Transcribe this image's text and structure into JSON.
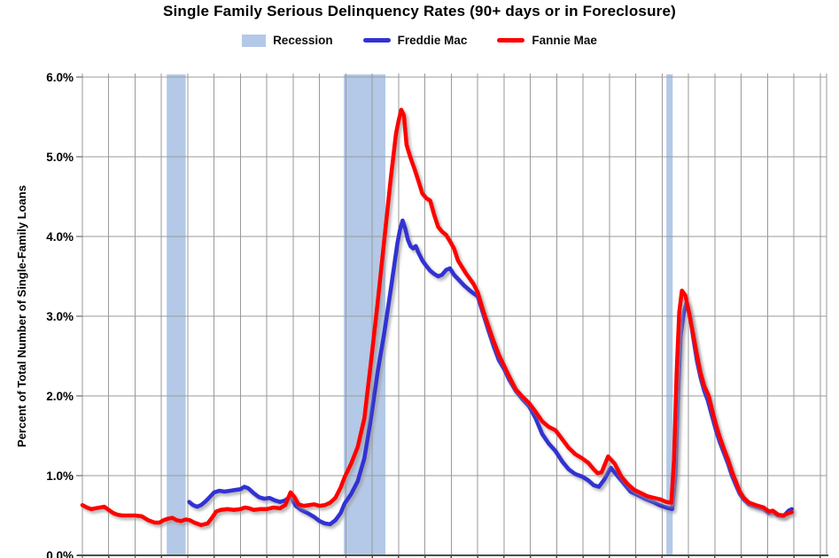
{
  "title": "Single Family Serious Delinquency Rates (90+ days or in Foreclosure)",
  "legend": [
    {
      "label": "Recession",
      "type": "band",
      "color": "#b3c9e7"
    },
    {
      "label": "Freddie Mac",
      "type": "line",
      "color": "#3232d2"
    },
    {
      "label": "Fannie Mae",
      "type": "line",
      "color": "#fe0000"
    }
  ],
  "y_axis": {
    "title": "Percent of Total Number of Single-Family Loans",
    "tick_labels": [
      "0.0%",
      "1.0%",
      "2.0%",
      "3.0%",
      "4.0%",
      "5.0%",
      "6.0%"
    ],
    "min": 0,
    "max": 6
  },
  "chart_data": {
    "type": "line",
    "title": "Single Family Serious Delinquency Rates (90+ days or in Foreclosure)",
    "ylabel": "Percent of Total Number of Single-Family Loans",
    "ylim": [
      0,
      6
    ],
    "y_unit": "percent",
    "grid": true,
    "legend_position": "top",
    "x_axis": {
      "start": 1998,
      "end": 2026.24,
      "gridline_step_years": 1,
      "tick_labels_visible": false
    },
    "colors": {
      "grid": "#9a9a9a",
      "axis": "#4d4d4d",
      "recession_band": "#b3c9e7",
      "background": "#ffffff"
    },
    "recession_bands": [
      [
        2001.2,
        2001.92
      ],
      [
        2007.92,
        2009.5
      ],
      [
        2020.16,
        2020.4
      ]
    ],
    "series": [
      {
        "name": "Freddie Mac",
        "color": "#3232d2",
        "points": [
          [
            2002.05,
            0.67
          ],
          [
            2002.2,
            0.63
          ],
          [
            2002.35,
            0.61
          ],
          [
            2002.5,
            0.63
          ],
          [
            2002.65,
            0.67
          ],
          [
            2002.8,
            0.72
          ],
          [
            2003.0,
            0.79
          ],
          [
            2003.2,
            0.81
          ],
          [
            2003.4,
            0.8
          ],
          [
            2003.6,
            0.81
          ],
          [
            2003.8,
            0.82
          ],
          [
            2004.0,
            0.83
          ],
          [
            2004.15,
            0.86
          ],
          [
            2004.3,
            0.84
          ],
          [
            2004.5,
            0.78
          ],
          [
            2004.7,
            0.73
          ],
          [
            2004.9,
            0.71
          ],
          [
            2005.1,
            0.72
          ],
          [
            2005.3,
            0.69
          ],
          [
            2005.5,
            0.67
          ],
          [
            2005.7,
            0.69
          ],
          [
            2005.9,
            0.74
          ],
          [
            2006.1,
            0.62
          ],
          [
            2006.3,
            0.57
          ],
          [
            2006.55,
            0.53
          ],
          [
            2006.8,
            0.48
          ],
          [
            2007.0,
            0.43
          ],
          [
            2007.2,
            0.4
          ],
          [
            2007.4,
            0.39
          ],
          [
            2007.6,
            0.44
          ],
          [
            2007.8,
            0.53
          ],
          [
            2007.95,
            0.65
          ],
          [
            2008.2,
            0.77
          ],
          [
            2008.45,
            0.93
          ],
          [
            2008.7,
            1.22
          ],
          [
            2008.95,
            1.72
          ],
          [
            2009.2,
            2.29
          ],
          [
            2009.45,
            2.78
          ],
          [
            2009.7,
            3.33
          ],
          [
            2009.95,
            3.91
          ],
          [
            2010.05,
            4.08
          ],
          [
            2010.15,
            4.2
          ],
          [
            2010.25,
            4.1
          ],
          [
            2010.35,
            3.96
          ],
          [
            2010.45,
            3.88
          ],
          [
            2010.55,
            3.85
          ],
          [
            2010.65,
            3.88
          ],
          [
            2010.75,
            3.8
          ],
          [
            2010.9,
            3.7
          ],
          [
            2011.05,
            3.63
          ],
          [
            2011.2,
            3.57
          ],
          [
            2011.35,
            3.53
          ],
          [
            2011.5,
            3.5
          ],
          [
            2011.65,
            3.52
          ],
          [
            2011.8,
            3.58
          ],
          [
            2011.95,
            3.6
          ],
          [
            2012.1,
            3.52
          ],
          [
            2012.3,
            3.45
          ],
          [
            2012.5,
            3.38
          ],
          [
            2012.75,
            3.31
          ],
          [
            2013.0,
            3.25
          ],
          [
            2013.2,
            3.04
          ],
          [
            2013.4,
            2.83
          ],
          [
            2013.6,
            2.63
          ],
          [
            2013.8,
            2.45
          ],
          [
            2014.0,
            2.34
          ],
          [
            2014.2,
            2.2
          ],
          [
            2014.45,
            2.06
          ],
          [
            2014.7,
            1.96
          ],
          [
            2014.95,
            1.87
          ],
          [
            2015.2,
            1.72
          ],
          [
            2015.45,
            1.52
          ],
          [
            2015.7,
            1.4
          ],
          [
            2015.95,
            1.31
          ],
          [
            2016.2,
            1.18
          ],
          [
            2016.45,
            1.08
          ],
          [
            2016.7,
            1.02
          ],
          [
            2016.95,
            0.99
          ],
          [
            2017.2,
            0.94
          ],
          [
            2017.4,
            0.88
          ],
          [
            2017.6,
            0.86
          ],
          [
            2017.8,
            0.95
          ],
          [
            2018.05,
            1.1
          ],
          [
            2018.3,
            1.0
          ],
          [
            2018.55,
            0.9
          ],
          [
            2018.8,
            0.8
          ],
          [
            2019.05,
            0.76
          ],
          [
            2019.35,
            0.71
          ],
          [
            2019.65,
            0.67
          ],
          [
            2019.9,
            0.63
          ],
          [
            2020.15,
            0.6
          ],
          [
            2020.38,
            0.58
          ],
          [
            2020.5,
            1.0
          ],
          [
            2020.6,
            2.0
          ],
          [
            2020.7,
            2.75
          ],
          [
            2020.82,
            3.05
          ],
          [
            2020.92,
            3.17
          ],
          [
            2021.05,
            3.02
          ],
          [
            2021.18,
            2.73
          ],
          [
            2021.32,
            2.44
          ],
          [
            2021.46,
            2.23
          ],
          [
            2021.6,
            2.06
          ],
          [
            2021.73,
            1.95
          ],
          [
            2021.9,
            1.74
          ],
          [
            2022.05,
            1.56
          ],
          [
            2022.2,
            1.41
          ],
          [
            2022.35,
            1.28
          ],
          [
            2022.5,
            1.15
          ],
          [
            2022.65,
            1.0
          ],
          [
            2022.8,
            0.88
          ],
          [
            2022.95,
            0.77
          ],
          [
            2023.1,
            0.7
          ],
          [
            2023.3,
            0.64
          ],
          [
            2023.55,
            0.61
          ],
          [
            2023.85,
            0.58
          ],
          [
            2024.05,
            0.53
          ],
          [
            2024.2,
            0.54
          ],
          [
            2024.4,
            0.5
          ],
          [
            2024.6,
            0.49
          ],
          [
            2024.8,
            0.56
          ],
          [
            2024.92,
            0.58
          ]
        ]
      },
      {
        "name": "Fannie Mae",
        "color": "#fe0000",
        "points": [
          [
            1998.0,
            0.63
          ],
          [
            1998.17,
            0.6
          ],
          [
            1998.33,
            0.58
          ],
          [
            1998.5,
            0.59
          ],
          [
            1998.67,
            0.6
          ],
          [
            1998.83,
            0.61
          ],
          [
            1999.0,
            0.57
          ],
          [
            1999.17,
            0.53
          ],
          [
            1999.33,
            0.51
          ],
          [
            1999.5,
            0.5
          ],
          [
            1999.75,
            0.5
          ],
          [
            2000.0,
            0.5
          ],
          [
            2000.25,
            0.49
          ],
          [
            2000.5,
            0.44
          ],
          [
            2000.75,
            0.41
          ],
          [
            2000.92,
            0.41
          ],
          [
            2001.08,
            0.44
          ],
          [
            2001.25,
            0.46
          ],
          [
            2001.42,
            0.47
          ],
          [
            2001.58,
            0.44
          ],
          [
            2001.75,
            0.43
          ],
          [
            2001.92,
            0.45
          ],
          [
            2002.08,
            0.44
          ],
          [
            2002.25,
            0.41
          ],
          [
            2002.5,
            0.38
          ],
          [
            2002.75,
            0.4
          ],
          [
            2002.92,
            0.47
          ],
          [
            2003.08,
            0.55
          ],
          [
            2003.25,
            0.57
          ],
          [
            2003.5,
            0.58
          ],
          [
            2003.75,
            0.57
          ],
          [
            2004.0,
            0.58
          ],
          [
            2004.17,
            0.6
          ],
          [
            2004.33,
            0.59
          ],
          [
            2004.5,
            0.57
          ],
          [
            2004.75,
            0.58
          ],
          [
            2005.0,
            0.58
          ],
          [
            2005.25,
            0.6
          ],
          [
            2005.5,
            0.59
          ],
          [
            2005.7,
            0.63
          ],
          [
            2005.9,
            0.79
          ],
          [
            2006.05,
            0.73
          ],
          [
            2006.2,
            0.64
          ],
          [
            2006.4,
            0.62
          ],
          [
            2006.6,
            0.63
          ],
          [
            2006.8,
            0.64
          ],
          [
            2007.0,
            0.62
          ],
          [
            2007.2,
            0.63
          ],
          [
            2007.4,
            0.66
          ],
          [
            2007.6,
            0.72
          ],
          [
            2007.8,
            0.85
          ],
          [
            2007.95,
            0.98
          ],
          [
            2008.2,
            1.15
          ],
          [
            2008.45,
            1.36
          ],
          [
            2008.7,
            1.72
          ],
          [
            2008.95,
            2.42
          ],
          [
            2009.2,
            3.15
          ],
          [
            2009.45,
            3.94
          ],
          [
            2009.7,
            4.72
          ],
          [
            2009.9,
            5.29
          ],
          [
            2010.0,
            5.45
          ],
          [
            2010.1,
            5.59
          ],
          [
            2010.2,
            5.52
          ],
          [
            2010.3,
            5.15
          ],
          [
            2010.45,
            4.99
          ],
          [
            2010.6,
            4.85
          ],
          [
            2010.75,
            4.7
          ],
          [
            2010.9,
            4.54
          ],
          [
            2011.05,
            4.48
          ],
          [
            2011.2,
            4.45
          ],
          [
            2011.35,
            4.27
          ],
          [
            2011.5,
            4.12
          ],
          [
            2011.65,
            4.06
          ],
          [
            2011.8,
            4.02
          ],
          [
            2011.95,
            3.94
          ],
          [
            2012.1,
            3.85
          ],
          [
            2012.25,
            3.7
          ],
          [
            2012.4,
            3.62
          ],
          [
            2012.55,
            3.54
          ],
          [
            2012.7,
            3.47
          ],
          [
            2012.85,
            3.4
          ],
          [
            2013.0,
            3.3
          ],
          [
            2013.2,
            3.08
          ],
          [
            2013.4,
            2.88
          ],
          [
            2013.6,
            2.69
          ],
          [
            2013.8,
            2.52
          ],
          [
            2014.0,
            2.38
          ],
          [
            2014.2,
            2.24
          ],
          [
            2014.45,
            2.08
          ],
          [
            2014.7,
            1.99
          ],
          [
            2014.95,
            1.91
          ],
          [
            2015.2,
            1.8
          ],
          [
            2015.45,
            1.68
          ],
          [
            2015.7,
            1.61
          ],
          [
            2015.95,
            1.57
          ],
          [
            2016.2,
            1.46
          ],
          [
            2016.45,
            1.35
          ],
          [
            2016.7,
            1.27
          ],
          [
            2016.95,
            1.22
          ],
          [
            2017.2,
            1.16
          ],
          [
            2017.4,
            1.08
          ],
          [
            2017.55,
            1.03
          ],
          [
            2017.7,
            1.04
          ],
          [
            2017.95,
            1.24
          ],
          [
            2018.2,
            1.15
          ],
          [
            2018.45,
            0.99
          ],
          [
            2018.7,
            0.89
          ],
          [
            2018.95,
            0.82
          ],
          [
            2019.2,
            0.78
          ],
          [
            2019.45,
            0.74
          ],
          [
            2019.7,
            0.72
          ],
          [
            2019.95,
            0.7
          ],
          [
            2020.15,
            0.67
          ],
          [
            2020.35,
            0.66
          ],
          [
            2020.45,
            1.2
          ],
          [
            2020.55,
            2.3
          ],
          [
            2020.65,
            3.05
          ],
          [
            2020.75,
            3.32
          ],
          [
            2020.88,
            3.26
          ],
          [
            2021.0,
            3.08
          ],
          [
            2021.15,
            2.82
          ],
          [
            2021.3,
            2.55
          ],
          [
            2021.45,
            2.3
          ],
          [
            2021.6,
            2.12
          ],
          [
            2021.77,
            2.0
          ],
          [
            2021.9,
            1.82
          ],
          [
            2022.05,
            1.63
          ],
          [
            2022.2,
            1.47
          ],
          [
            2022.35,
            1.33
          ],
          [
            2022.5,
            1.2
          ],
          [
            2022.65,
            1.05
          ],
          [
            2022.8,
            0.92
          ],
          [
            2022.95,
            0.8
          ],
          [
            2023.1,
            0.72
          ],
          [
            2023.3,
            0.66
          ],
          [
            2023.55,
            0.63
          ],
          [
            2023.85,
            0.6
          ],
          [
            2024.05,
            0.55
          ],
          [
            2024.2,
            0.56
          ],
          [
            2024.4,
            0.51
          ],
          [
            2024.6,
            0.5
          ],
          [
            2024.8,
            0.53
          ],
          [
            2024.92,
            0.54
          ]
        ]
      }
    ]
  }
}
